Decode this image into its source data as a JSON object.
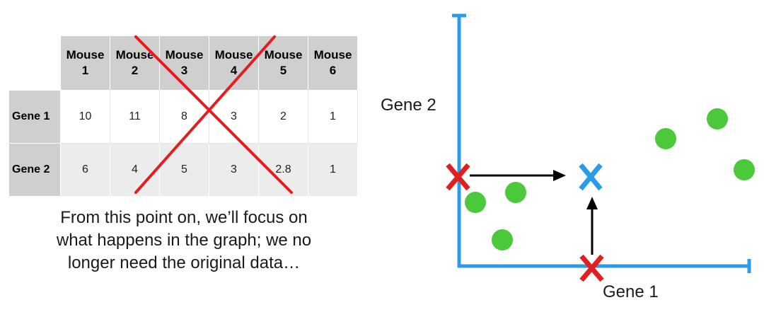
{
  "table": {
    "columns": [
      "Mouse\n1",
      "Mouse\n2",
      "Mouse\n3",
      "Mouse\n4",
      "Mouse\n5",
      "Mouse\n6"
    ],
    "rows": [
      {
        "label": "Gene 1",
        "values": [
          "10",
          "11",
          "8",
          "3",
          "2",
          "1"
        ]
      },
      {
        "label": "Gene 2",
        "values": [
          "6",
          "4",
          "5",
          "3",
          "2.8",
          "1"
        ]
      }
    ],
    "cross_color": "#e02020"
  },
  "caption": "From this point on, we’ll focus on\nwhat happens in the graph; we no\nlonger need the original data…",
  "plot": {
    "x_axis_label": "Gene 1",
    "y_axis_label": "Gene 2",
    "axis_color": "#2b9be8",
    "point_color": "#4cc93a",
    "marker_glyph": "X",
    "center_marker_color": "#2b9be8",
    "axis_marker_color": "#e02020",
    "arrow_color": "#000000"
  }
}
